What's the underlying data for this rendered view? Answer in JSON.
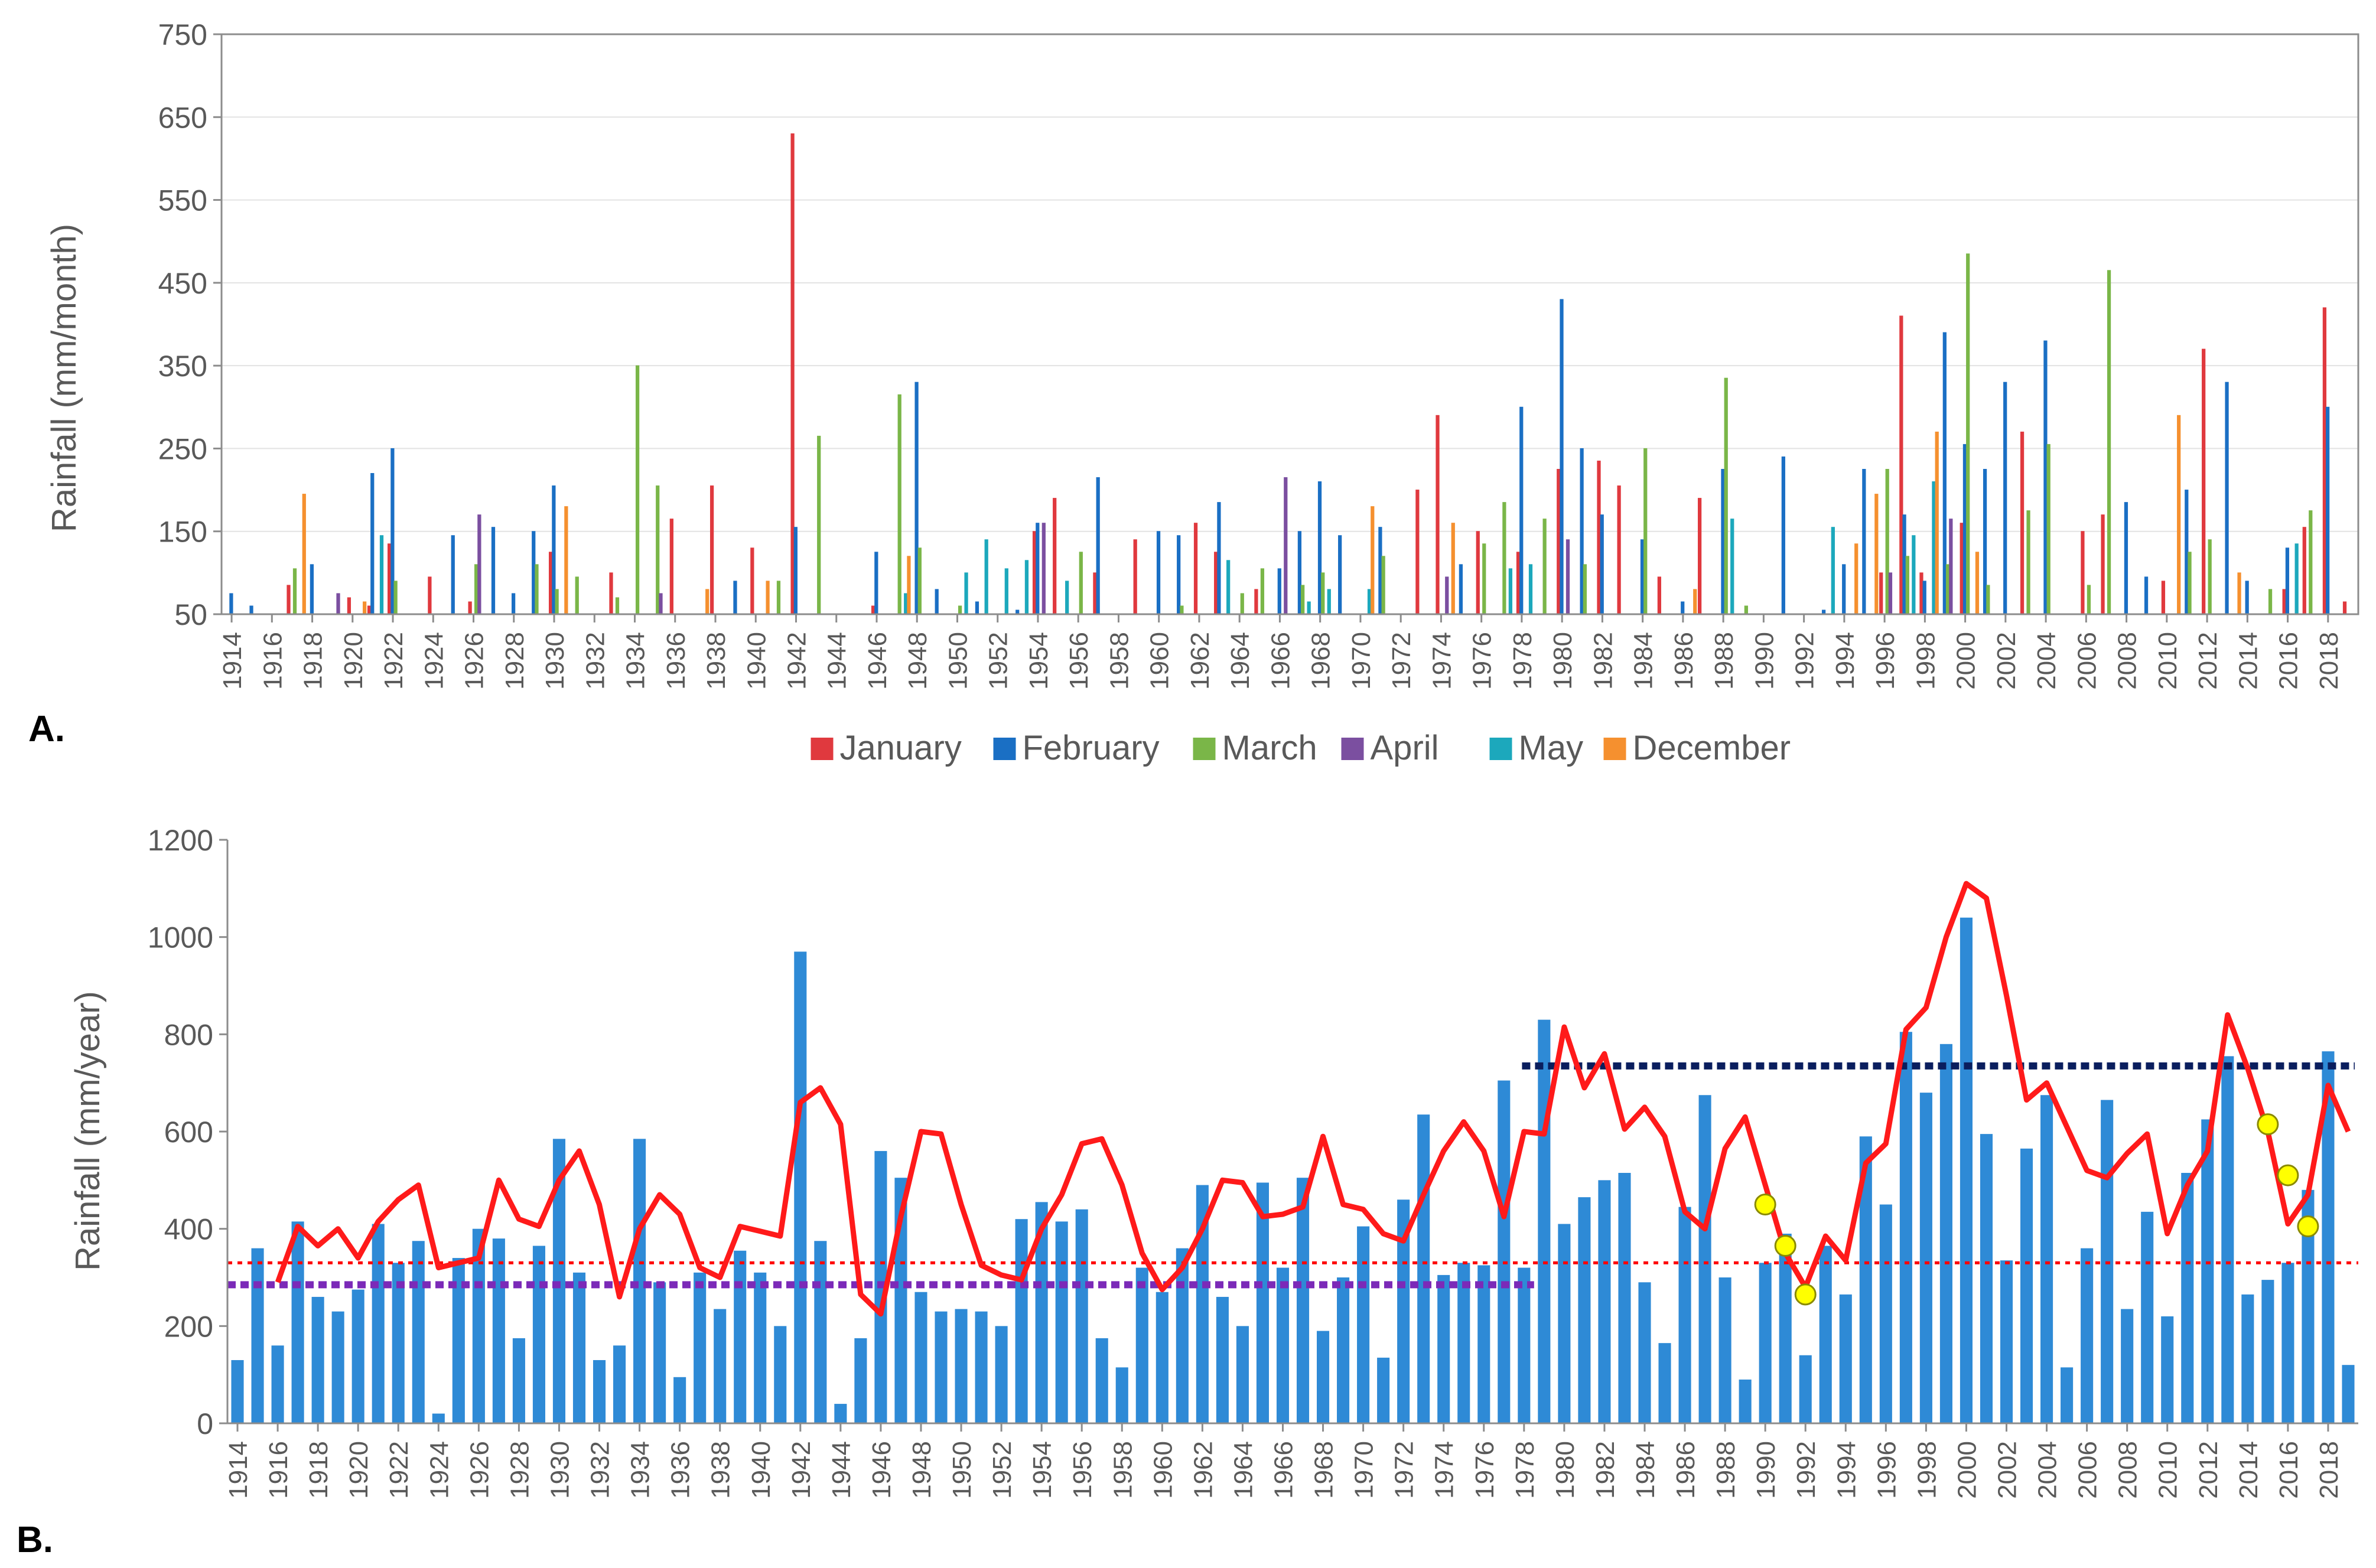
{
  "chart_data": [
    {
      "panel_label": "A.",
      "type": "bar",
      "ylabel": "Rainfall (mm/month)",
      "xlabel": "",
      "ylim": [
        50,
        750
      ],
      "yticks": [
        50,
        150,
        250,
        350,
        450,
        550,
        650,
        750
      ],
      "x_start": 1914,
      "x_end": 2019,
      "x_tick_step": 2,
      "legend_position": "bottom",
      "series": [
        {
          "name": "January",
          "color": "#e0393e",
          "points": [
            [
              1917,
              85
            ],
            [
              1920,
              70
            ],
            [
              1921,
              60
            ],
            [
              1922,
              135
            ],
            [
              1924,
              95
            ],
            [
              1926,
              65
            ],
            [
              1930,
              125
            ],
            [
              1933,
              100
            ],
            [
              1936,
              165
            ],
            [
              1938,
              205
            ],
            [
              1940,
              130
            ],
            [
              1942,
              630
            ],
            [
              1946,
              60
            ],
            [
              1954,
              150
            ],
            [
              1955,
              190
            ],
            [
              1957,
              100
            ],
            [
              1959,
              140
            ],
            [
              1962,
              160
            ],
            [
              1963,
              125
            ],
            [
              1965,
              80
            ],
            [
              1973,
              200
            ],
            [
              1974,
              290
            ],
            [
              1976,
              150
            ],
            [
              1978,
              125
            ],
            [
              1980,
              225
            ],
            [
              1982,
              235
            ],
            [
              1983,
              205
            ],
            [
              1985,
              95
            ],
            [
              1987,
              190
            ],
            [
              1996,
              100
            ],
            [
              1997,
              410
            ],
            [
              1998,
              100
            ],
            [
              2000,
              160
            ],
            [
              2003,
              270
            ],
            [
              2006,
              150
            ],
            [
              2007,
              170
            ],
            [
              2010,
              90
            ],
            [
              2012,
              370
            ],
            [
              2016,
              80
            ],
            [
              2017,
              155
            ],
            [
              2018,
              420
            ],
            [
              2019,
              65
            ]
          ]
        },
        {
          "name": "February",
          "color": "#1a6fc4",
          "points": [
            [
              1914,
              75
            ],
            [
              1915,
              60
            ],
            [
              1918,
              110
            ],
            [
              1921,
              220
            ],
            [
              1922,
              250
            ],
            [
              1925,
              145
            ],
            [
              1927,
              155
            ],
            [
              1928,
              75
            ],
            [
              1929,
              150
            ],
            [
              1930,
              205
            ],
            [
              1939,
              90
            ],
            [
              1942,
              155
            ],
            [
              1946,
              125
            ],
            [
              1948,
              330
            ],
            [
              1949,
              80
            ],
            [
              1951,
              65
            ],
            [
              1953,
              55
            ],
            [
              1954,
              160
            ],
            [
              1957,
              215
            ],
            [
              1960,
              150
            ],
            [
              1961,
              145
            ],
            [
              1963,
              185
            ],
            [
              1966,
              105
            ],
            [
              1967,
              150
            ],
            [
              1968,
              210
            ],
            [
              1969,
              145
            ],
            [
              1971,
              155
            ],
            [
              1975,
              110
            ],
            [
              1978,
              300
            ],
            [
              1980,
              430
            ],
            [
              1981,
              250
            ],
            [
              1982,
              170
            ],
            [
              1984,
              140
            ],
            [
              1986,
              65
            ],
            [
              1988,
              225
            ],
            [
              1991,
              240
            ],
            [
              1993,
              55
            ],
            [
              1994,
              110
            ],
            [
              1995,
              225
            ],
            [
              1997,
              170
            ],
            [
              1998,
              90
            ],
            [
              1999,
              390
            ],
            [
              2000,
              255
            ],
            [
              2001,
              225
            ],
            [
              2002,
              330
            ],
            [
              2004,
              380
            ],
            [
              2008,
              185
            ],
            [
              2009,
              95
            ],
            [
              2011,
              200
            ],
            [
              2013,
              330
            ],
            [
              2014,
              90
            ],
            [
              2016,
              130
            ],
            [
              2018,
              300
            ]
          ]
        },
        {
          "name": "March",
          "color": "#7ab648",
          "points": [
            [
              1917,
              105
            ],
            [
              1922,
              90
            ],
            [
              1926,
              110
            ],
            [
              1929,
              110
            ],
            [
              1930,
              80
            ],
            [
              1931,
              95
            ],
            [
              1933,
              70
            ],
            [
              1934,
              350
            ],
            [
              1935,
              205
            ],
            [
              1941,
              90
            ],
            [
              1943,
              265
            ],
            [
              1947,
              315
            ],
            [
              1948,
              130
            ],
            [
              1950,
              60
            ],
            [
              1956,
              125
            ],
            [
              1960,
              50
            ],
            [
              1961,
              60
            ],
            [
              1964,
              75
            ],
            [
              1965,
              105
            ],
            [
              1967,
              85
            ],
            [
              1968,
              100
            ],
            [
              1971,
              120
            ],
            [
              1976,
              135
            ],
            [
              1977,
              185
            ],
            [
              1979,
              165
            ],
            [
              1981,
              110
            ],
            [
              1984,
              250
            ],
            [
              1988,
              335
            ],
            [
              1989,
              60
            ],
            [
              1996,
              225
            ],
            [
              1997,
              120
            ],
            [
              1999,
              110
            ],
            [
              2000,
              485
            ],
            [
              2001,
              85
            ],
            [
              2003,
              175
            ],
            [
              2004,
              255
            ],
            [
              2006,
              85
            ],
            [
              2007,
              465
            ],
            [
              2011,
              125
            ],
            [
              2012,
              140
            ],
            [
              2015,
              80
            ],
            [
              2017,
              175
            ]
          ]
        },
        {
          "name": "April",
          "color": "#7b4fa0",
          "points": [
            [
              1919,
              75
            ],
            [
              1926,
              170
            ],
            [
              1935,
              75
            ],
            [
              1954,
              160
            ],
            [
              1966,
              215
            ],
            [
              1974,
              95
            ],
            [
              1980,
              140
            ],
            [
              1996,
              100
            ],
            [
              1999,
              165
            ]
          ]
        },
        {
          "name": "May",
          "color": "#1ca8bc",
          "points": [
            [
              1921,
              145
            ],
            [
              1947,
              75
            ],
            [
              1950,
              100
            ],
            [
              1951,
              140
            ],
            [
              1952,
              105
            ],
            [
              1953,
              115
            ],
            [
              1955,
              90
            ],
            [
              1963,
              115
            ],
            [
              1967,
              65
            ],
            [
              1968,
              80
            ],
            [
              1970,
              80
            ],
            [
              1977,
              105
            ],
            [
              1978,
              110
            ],
            [
              1988,
              165
            ],
            [
              1993,
              155
            ],
            [
              1997,
              145
            ],
            [
              1998,
              210
            ],
            [
              2016,
              135
            ]
          ]
        },
        {
          "name": "December",
          "color": "#f5902f",
          "points": [
            [
              1917,
              195
            ],
            [
              1920,
              65
            ],
            [
              1930,
              180
            ],
            [
              1937,
              80
            ],
            [
              1940,
              90
            ],
            [
              1947,
              120
            ],
            [
              1970,
              180
            ],
            [
              1974,
              160
            ],
            [
              1986,
              80
            ],
            [
              1994,
              135
            ],
            [
              1995,
              195
            ],
            [
              1998,
              270
            ],
            [
              2000,
              125
            ],
            [
              2010,
              290
            ],
            [
              2013,
              100
            ]
          ]
        }
      ]
    },
    {
      "panel_label": "B.",
      "type": "bar",
      "ylabel": "Rainfall (mm/year)",
      "xlabel": "",
      "ylim": [
        0,
        1200
      ],
      "yticks": [
        0,
        200,
        400,
        600,
        800,
        1000,
        1200
      ],
      "x_start": 1914,
      "x_end": 2019,
      "x_tick_step": 2,
      "bar_color": "#2e8ad6",
      "years": [
        1914,
        1915,
        1916,
        1917,
        1918,
        1919,
        1920,
        1921,
        1922,
        1923,
        1924,
        1925,
        1926,
        1927,
        1928,
        1929,
        1930,
        1931,
        1932,
        1933,
        1934,
        1935,
        1936,
        1937,
        1938,
        1939,
        1940,
        1941,
        1942,
        1943,
        1944,
        1945,
        1946,
        1947,
        1948,
        1949,
        1950,
        1951,
        1952,
        1953,
        1954,
        1955,
        1956,
        1957,
        1958,
        1959,
        1960,
        1961,
        1962,
        1963,
        1964,
        1965,
        1966,
        1967,
        1968,
        1969,
        1970,
        1971,
        1972,
        1973,
        1974,
        1975,
        1976,
        1977,
        1978,
        1979,
        1980,
        1981,
        1982,
        1983,
        1984,
        1985,
        1986,
        1987,
        1988,
        1989,
        1990,
        1991,
        1992,
        1993,
        1994,
        1995,
        1996,
        1997,
        1998,
        1999,
        2000,
        2001,
        2002,
        2003,
        2004,
        2005,
        2006,
        2007,
        2008,
        2009,
        2010,
        2011,
        2012,
        2013,
        2014,
        2015,
        2016,
        2017,
        2018,
        2019
      ],
      "annual_values": [
        130,
        360,
        160,
        415,
        260,
        230,
        275,
        410,
        330,
        375,
        20,
        340,
        400,
        380,
        175,
        365,
        585,
        310,
        130,
        160,
        585,
        290,
        95,
        310,
        235,
        355,
        310,
        200,
        970,
        375,
        40,
        175,
        560,
        505,
        270,
        230,
        235,
        230,
        200,
        420,
        455,
        415,
        440,
        175,
        115,
        320,
        270,
        360,
        490,
        260,
        200,
        495,
        320,
        505,
        190,
        300,
        405,
        135,
        460,
        635,
        305,
        330,
        325,
        705,
        320,
        830,
        410,
        465,
        500,
        515,
        290,
        165,
        445,
        675,
        300,
        90,
        330,
        390,
        140,
        365,
        265,
        590,
        450,
        805,
        680,
        780,
        1040,
        595,
        335,
        565,
        675,
        115,
        360,
        665,
        235,
        435,
        220,
        515,
        625,
        755,
        265,
        295,
        330,
        480,
        765,
        120
      ],
      "moving_average": [
        null,
        null,
        290,
        405,
        365,
        400,
        340,
        415,
        460,
        490,
        320,
        330,
        340,
        500,
        420,
        405,
        500,
        560,
        450,
        260,
        400,
        470,
        430,
        320,
        300,
        405,
        395,
        385,
        660,
        690,
        615,
        265,
        225,
        425,
        600,
        595,
        450,
        325,
        305,
        295,
        400,
        470,
        575,
        585,
        490,
        350,
        275,
        320,
        400,
        500,
        495,
        425,
        430,
        445,
        590,
        450,
        440,
        390,
        375,
        470,
        560,
        620,
        560,
        425,
        600,
        595,
        815,
        690,
        760,
        605,
        650,
        590,
        435,
        400,
        565,
        630,
        490,
        350,
        280,
        385,
        335,
        535,
        575,
        810,
        855,
        1000,
        1110,
        1080,
        880,
        665,
        700,
        610,
        520,
        505,
        555,
        595,
        390,
        490,
        560,
        840,
        730,
        600,
        410,
        470,
        695,
        600
      ],
      "hline_purple": {
        "value": 285,
        "from": 1914,
        "to": 1978,
        "color": "#7b2ab8"
      },
      "hline_red": {
        "value": 330,
        "color": "#ff0000"
      },
      "hline_navy": {
        "value": 735,
        "from": 1978,
        "to": 2019,
        "color": "#0a1e5e"
      },
      "yellow_markers": [
        [
          1990,
          450
        ],
        [
          1991,
          365
        ],
        [
          1992,
          265
        ],
        [
          2015,
          615
        ],
        [
          2016,
          510
        ],
        [
          2017,
          405
        ]
      ]
    }
  ]
}
